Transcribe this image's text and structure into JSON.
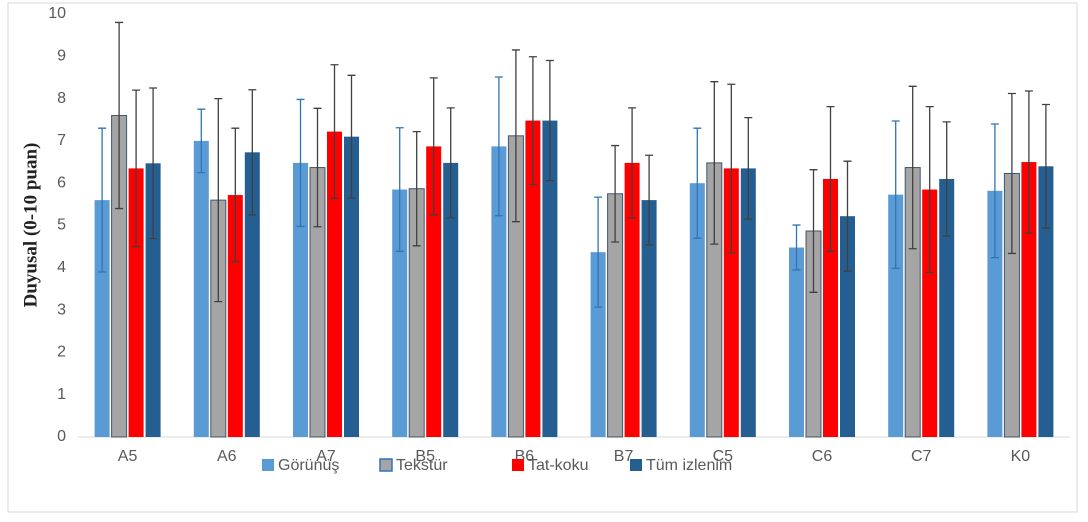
{
  "chart_data": {
    "type": "bar",
    "y_label": "Duyusal (0-10 puan)",
    "categories": [
      "A5",
      "A6",
      "A7",
      "B5",
      "B6",
      "B7",
      "C5",
      "C6",
      "C7",
      "K0"
    ],
    "series": [
      {
        "name": "Görünüş",
        "color": "#5b9bd5",
        "error_color": "#2e75b6",
        "values": [
          5.6,
          7.0,
          6.48,
          5.85,
          6.87,
          4.37,
          6.0,
          4.48,
          5.73,
          5.82
        ],
        "errors": [
          1.7,
          0.75,
          1.5,
          1.46,
          1.64,
          1.3,
          1.3,
          0.53,
          1.74,
          1.58
        ]
      },
      {
        "name": "Tekstür",
        "color": "#a5a5a5",
        "error_color": "#404040",
        "values": [
          7.6,
          5.6,
          6.37,
          5.87,
          7.12,
          5.75,
          6.48,
          4.87,
          6.37,
          6.23
        ],
        "errors": [
          2.2,
          2.4,
          1.4,
          1.35,
          2.03,
          1.14,
          1.92,
          1.45,
          1.92,
          1.89
        ]
      },
      {
        "name": "Tat-koku",
        "color": "#ff0000",
        "error_color": "#404040",
        "values": [
          6.35,
          5.72,
          7.22,
          6.87,
          7.48,
          6.48,
          6.35,
          6.1,
          5.85,
          6.5
        ],
        "errors": [
          1.85,
          1.58,
          1.58,
          1.62,
          1.51,
          1.3,
          1.99,
          1.71,
          1.96,
          1.68
        ]
      },
      {
        "name": "Tüm izlenim",
        "color": "#255e91",
        "error_color": "#404040",
        "values": [
          6.47,
          6.73,
          7.1,
          6.48,
          7.48,
          5.6,
          6.35,
          5.22,
          6.1,
          6.4
        ],
        "errors": [
          1.78,
          1.48,
          1.45,
          1.3,
          1.42,
          1.06,
          1.2,
          1.3,
          1.35,
          1.46
        ]
      }
    ],
    "ylim": [
      0,
      10
    ],
    "yticks": [
      0,
      1,
      2,
      3,
      4,
      5,
      6,
      7,
      8,
      9,
      10
    ],
    "grid": false,
    "legend": "bottom"
  }
}
